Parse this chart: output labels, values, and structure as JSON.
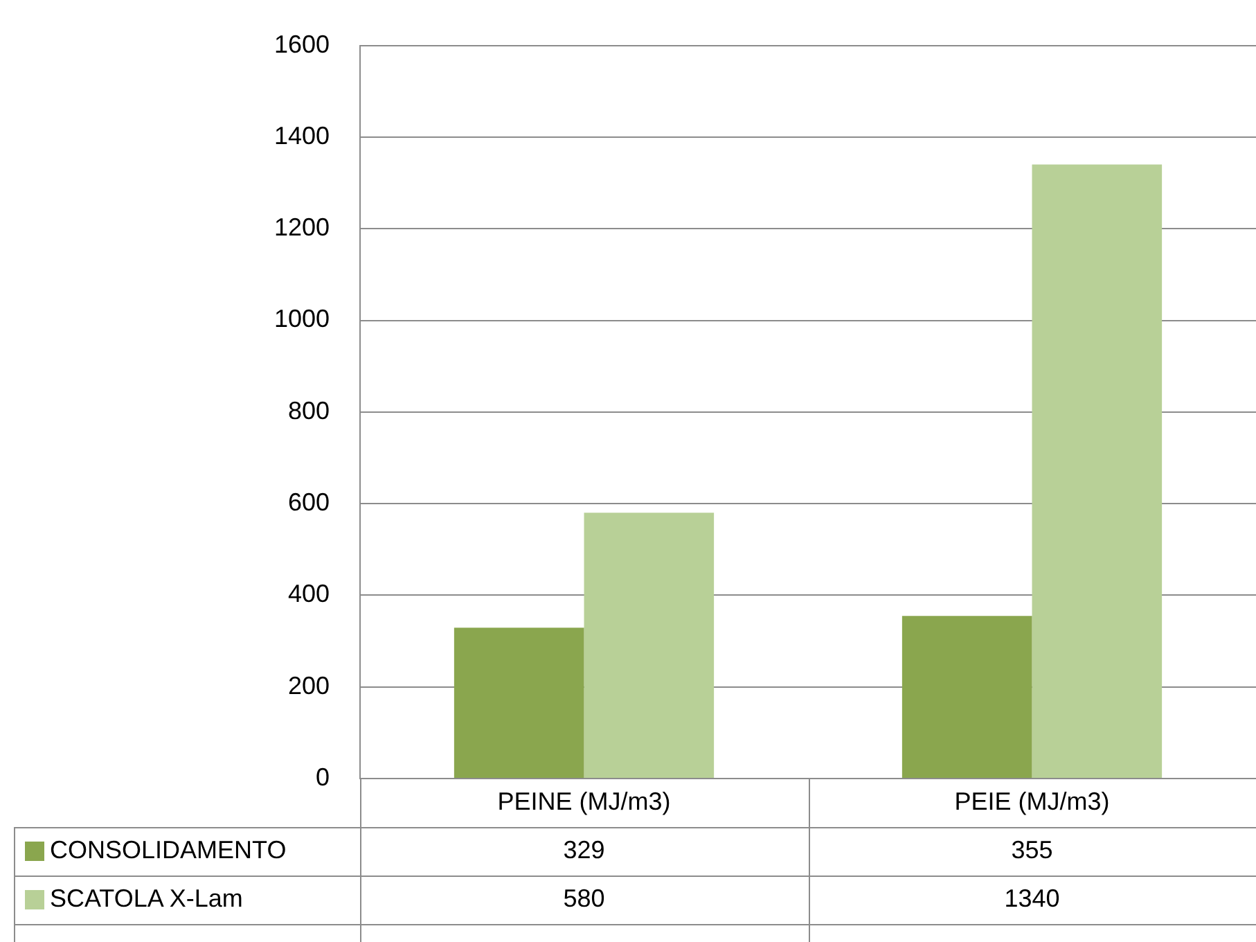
{
  "chart_data": {
    "type": "bar",
    "categories": [
      "PEINE (MJ/m3)",
      "PEIE (MJ/m3)"
    ],
    "series": [
      {
        "name": "CONSOLIDAMENTO",
        "color": "#8aa64e",
        "values": [
          329,
          355
        ]
      },
      {
        "name": "SCATOLA X-Lam",
        "color": "#b8d097",
        "values": [
          580,
          1340
        ]
      }
    ],
    "ylim": [
      0,
      1600
    ],
    "yticks": [
      0,
      200,
      400,
      600,
      800,
      1000,
      1200,
      1400,
      1600
    ],
    "grid": "y",
    "legend": "bottom",
    "data_labels": true
  }
}
